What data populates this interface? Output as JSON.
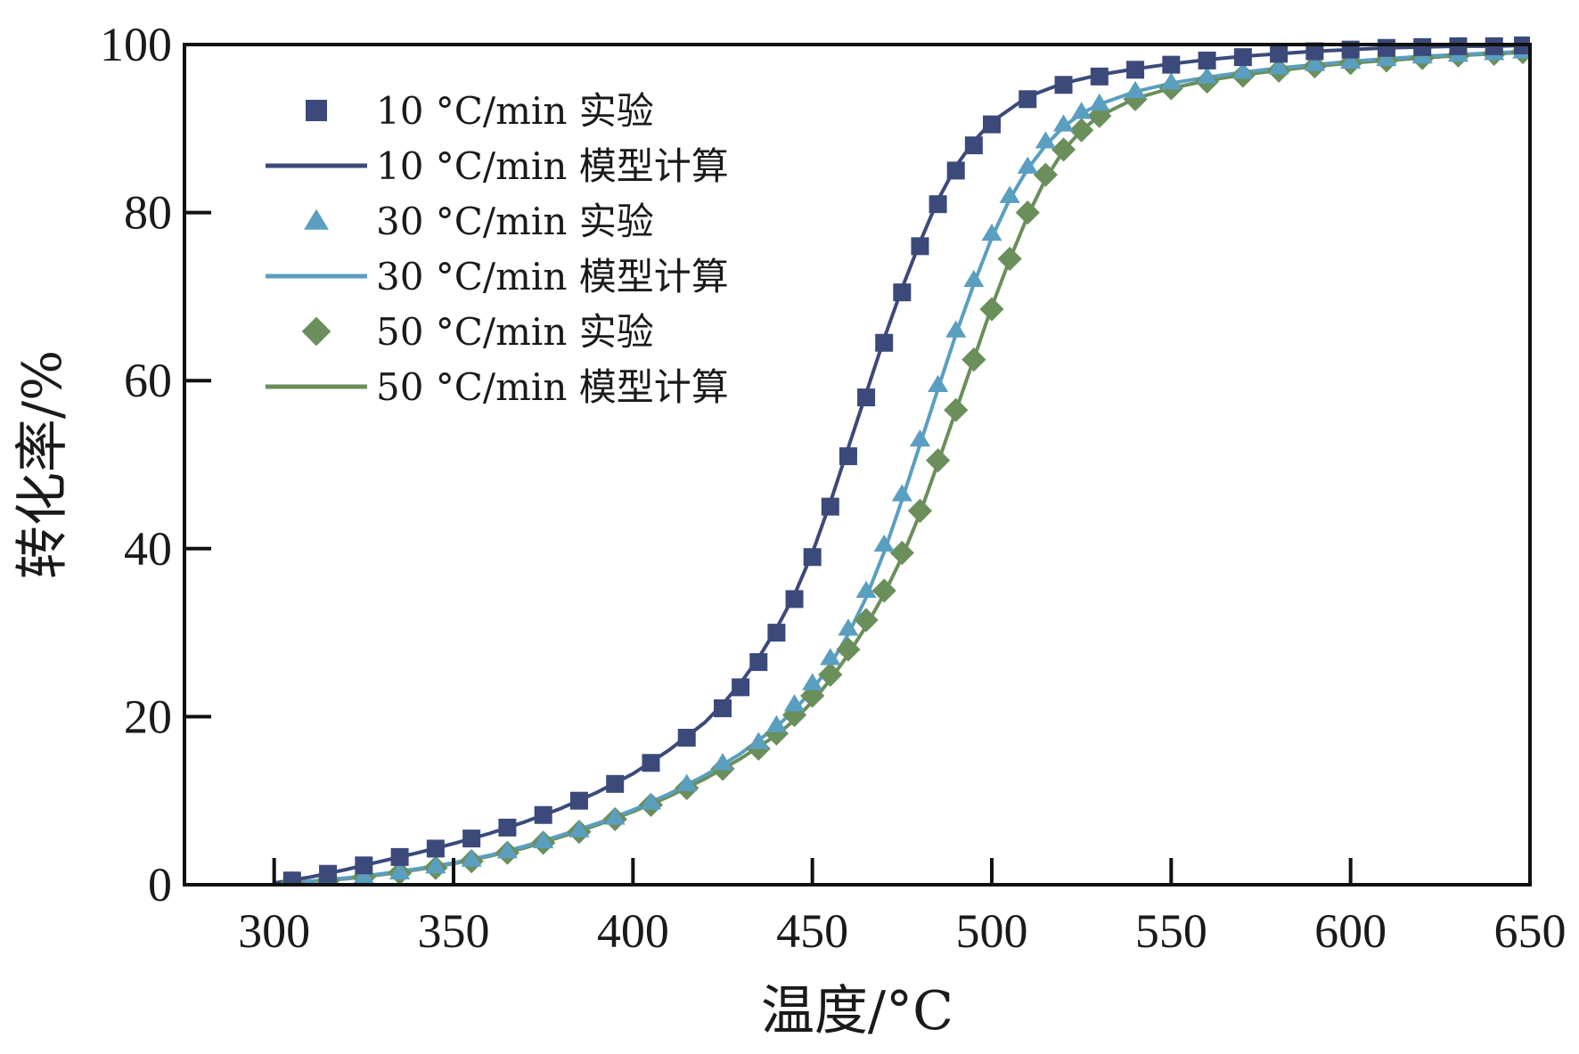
{
  "chart_data": {
    "type": "line",
    "title": "",
    "xlabel": "温度/°C",
    "ylabel": "转化率/%",
    "xlim": [
      275,
      650
    ],
    "ylim": [
      0,
      100
    ],
    "xticks": [
      300,
      350,
      400,
      450,
      500,
      550,
      600,
      650
    ],
    "yticks": [
      0,
      20,
      40,
      60,
      80,
      100
    ],
    "grid": false,
    "legend_position": "top-left",
    "series": [
      {
        "name": "10 °C/min 实验",
        "kind": "scatter",
        "marker": "square",
        "color": "#3b4a7a",
        "x": [
          305,
          315,
          325,
          335,
          345,
          355,
          365,
          375,
          385,
          395,
          405,
          415,
          425,
          430,
          435,
          440,
          445,
          450,
          455,
          460,
          465,
          470,
          475,
          480,
          485,
          490,
          495,
          500,
          510,
          520,
          530,
          540,
          550,
          560,
          570,
          580,
          590,
          600,
          610,
          620,
          630,
          640,
          648
        ],
        "y": [
          0.5,
          1.3,
          2.3,
          3.3,
          4.3,
          5.5,
          6.8,
          8.3,
          10.0,
          12.0,
          14.5,
          17.5,
          21.0,
          23.5,
          26.5,
          30.0,
          34.0,
          39.0,
          45.0,
          51.0,
          58.0,
          64.5,
          70.5,
          76.0,
          81.0,
          85.0,
          88.0,
          90.5,
          93.5,
          95.2,
          96.2,
          97.0,
          97.6,
          98.1,
          98.5,
          98.9,
          99.2,
          99.4,
          99.6,
          99.7,
          99.8,
          99.8,
          99.9
        ]
      },
      {
        "name": "10 °C/min 模型计算",
        "kind": "line",
        "color": "#3b4a7a",
        "x": [
          300,
          310,
          320,
          330,
          340,
          350,
          360,
          370,
          380,
          390,
          400,
          410,
          420,
          425,
          430,
          435,
          440,
          445,
          450,
          455,
          460,
          465,
          470,
          475,
          480,
          485,
          490,
          495,
          500,
          510,
          520,
          530,
          540,
          550,
          560,
          570,
          580,
          590,
          600,
          610,
          620,
          630,
          640,
          650
        ],
        "y": [
          0.2,
          0.9,
          1.8,
          2.8,
          3.8,
          4.9,
          6.1,
          7.5,
          9.1,
          11.0,
          13.2,
          16.0,
          19.3,
          21.5,
          24.0,
          27.0,
          30.5,
          34.5,
          39.5,
          45.5,
          52.0,
          58.5,
          65.0,
          71.0,
          76.5,
          81.5,
          85.5,
          88.5,
          90.8,
          93.8,
          95.4,
          96.4,
          97.1,
          97.7,
          98.2,
          98.6,
          98.9,
          99.2,
          99.4,
          99.6,
          99.7,
          99.8,
          99.8,
          99.9
        ]
      },
      {
        "name": "30 °C/min 实验",
        "kind": "scatter",
        "marker": "triangle",
        "color": "#5a9ec0",
        "x": [
          305,
          315,
          325,
          335,
          345,
          355,
          365,
          375,
          385,
          395,
          405,
          415,
          425,
          435,
          440,
          445,
          450,
          455,
          460,
          465,
          470,
          475,
          480,
          485,
          490,
          495,
          500,
          505,
          510,
          515,
          520,
          525,
          530,
          540,
          550,
          560,
          570,
          580,
          590,
          600,
          610,
          620,
          630,
          640,
          648
        ],
        "y": [
          0.2,
          0.6,
          1.0,
          1.5,
          2.2,
          3.0,
          4.0,
          5.2,
          6.5,
          8.0,
          9.8,
          12.0,
          14.5,
          17.0,
          19.0,
          21.5,
          24.0,
          27.0,
          30.5,
          35.0,
          40.5,
          46.5,
          53.0,
          59.5,
          66.0,
          72.0,
          77.5,
          82.0,
          85.5,
          88.5,
          90.5,
          92.0,
          93.0,
          94.5,
          95.5,
          96.2,
          96.8,
          97.3,
          97.7,
          98.0,
          98.3,
          98.6,
          98.8,
          99.0,
          99.2
        ]
      },
      {
        "name": "30 °C/min 模型计算",
        "kind": "line",
        "color": "#5a9ec0",
        "x": [
          300,
          310,
          320,
          330,
          340,
          350,
          360,
          370,
          380,
          390,
          400,
          410,
          420,
          430,
          440,
          445,
          450,
          455,
          460,
          465,
          470,
          475,
          480,
          485,
          490,
          495,
          500,
          505,
          510,
          515,
          520,
          525,
          530,
          540,
          550,
          560,
          570,
          580,
          590,
          600,
          610,
          620,
          630,
          640,
          650
        ],
        "y": [
          0.1,
          0.4,
          0.8,
          1.3,
          1.9,
          2.6,
          3.5,
          4.6,
          5.9,
          7.3,
          8.9,
          10.8,
          13.0,
          15.6,
          18.8,
          20.8,
          23.2,
          26.2,
          29.8,
          34.2,
          39.6,
          45.8,
          52.4,
          59.0,
          65.5,
          71.5,
          77.0,
          81.6,
          85.2,
          88.0,
          90.2,
          91.8,
          92.9,
          94.4,
          95.4,
          96.1,
          96.7,
          97.2,
          97.6,
          98.0,
          98.3,
          98.6,
          98.8,
          99.0,
          99.2
        ]
      },
      {
        "name": "50 °C/min 实验",
        "kind": "scatter",
        "marker": "diamond",
        "color": "#6a8f5a",
        "x": [
          305,
          315,
          325,
          335,
          345,
          355,
          365,
          375,
          385,
          395,
          405,
          415,
          425,
          435,
          440,
          445,
          450,
          455,
          460,
          465,
          470,
          475,
          480,
          485,
          490,
          495,
          500,
          505,
          510,
          515,
          520,
          525,
          530,
          540,
          550,
          560,
          570,
          580,
          590,
          600,
          610,
          620,
          630,
          640,
          648
        ],
        "y": [
          0.2,
          0.5,
          0.9,
          1.4,
          2.0,
          2.8,
          3.8,
          5.0,
          6.3,
          7.8,
          9.5,
          11.5,
          13.8,
          16.2,
          18.0,
          20.2,
          22.5,
          25.0,
          28.0,
          31.5,
          35.0,
          39.5,
          44.5,
          50.5,
          56.5,
          62.5,
          68.5,
          74.5,
          80.0,
          84.5,
          87.5,
          89.8,
          91.5,
          93.5,
          94.8,
          95.6,
          96.3,
          96.9,
          97.4,
          97.8,
          98.1,
          98.4,
          98.7,
          98.9,
          99.1
        ]
      },
      {
        "name": "50 °C/min 模型计算",
        "kind": "line",
        "color": "#6a8f5a",
        "x": [
          300,
          310,
          320,
          330,
          340,
          350,
          360,
          370,
          380,
          390,
          400,
          410,
          420,
          430,
          440,
          445,
          450,
          455,
          460,
          465,
          470,
          475,
          480,
          485,
          490,
          495,
          500,
          505,
          510,
          515,
          520,
          525,
          530,
          540,
          550,
          560,
          570,
          580,
          590,
          600,
          610,
          620,
          630,
          640,
          650
        ],
        "y": [
          0.1,
          0.4,
          0.7,
          1.2,
          1.8,
          2.5,
          3.4,
          4.4,
          5.7,
          7.1,
          8.7,
          10.5,
          12.6,
          15.0,
          17.8,
          19.6,
          21.8,
          24.4,
          27.4,
          30.8,
          34.6,
          39.0,
          44.2,
          50.2,
          56.4,
          62.6,
          68.8,
          74.4,
          79.6,
          84.0,
          87.4,
          89.8,
          91.5,
          93.6,
          94.8,
          95.7,
          96.4,
          96.9,
          97.4,
          97.8,
          98.1,
          98.4,
          98.7,
          98.9,
          99.1
        ]
      }
    ]
  }
}
